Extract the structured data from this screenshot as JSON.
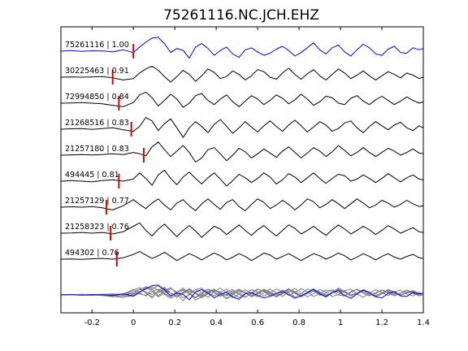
{
  "chart_data": {
    "type": "line",
    "title": "75261116.NC.JCH.EHZ",
    "xlabel": "",
    "ylabel": "",
    "xlim": [
      -0.35,
      1.4
    ],
    "xticks": [
      -0.2,
      0,
      0.2,
      0.4,
      0.6,
      0.8,
      1,
      1.2,
      1.4
    ],
    "xtick_labels": [
      "-0.2",
      "0",
      "0.2",
      "0.4",
      "0.6",
      "0.8",
      "1",
      "1.2",
      "1.4"
    ],
    "grid": false,
    "legend": "none",
    "colors": {
      "reference": "#0000ff",
      "neighbor": "#000000",
      "overlay_neighbor": "#808080",
      "pick": "#e00000"
    },
    "series": [
      {
        "label": "75261116 | 1.00",
        "pick_time": 0.0,
        "reference": true,
        "x": [
          -0.35,
          -0.3,
          -0.25,
          -0.2,
          -0.15,
          -0.1,
          -0.05,
          0.0,
          0.03,
          0.06,
          0.09,
          0.12,
          0.15,
          0.18,
          0.21,
          0.24,
          0.27,
          0.3,
          0.33,
          0.36,
          0.39,
          0.42,
          0.45,
          0.48,
          0.51,
          0.54,
          0.57,
          0.6,
          0.63,
          0.66,
          0.69,
          0.72,
          0.75,
          0.78,
          0.81,
          0.84,
          0.87,
          0.9,
          0.93,
          0.96,
          0.99,
          1.02,
          1.05,
          1.08,
          1.11,
          1.14,
          1.17,
          1.2,
          1.23,
          1.26,
          1.29,
          1.32,
          1.35,
          1.38,
          1.4
        ],
        "y": [
          0.0,
          0.04,
          -0.02,
          0.03,
          0.02,
          -0.05,
          0.1,
          -0.1,
          0.3,
          0.65,
          0.95,
          1.0,
          0.55,
          -0.1,
          0.2,
          0.05,
          -0.5,
          0.3,
          0.55,
          0.2,
          -0.3,
          0.05,
          0.3,
          -0.2,
          -0.45,
          0.1,
          0.25,
          -0.05,
          -0.3,
          -0.15,
          0.15,
          0.35,
          0.05,
          -0.35,
          -0.1,
          0.25,
          0.6,
          0.1,
          -0.2,
          0.25,
          0.45,
          -0.05,
          -0.35,
          0.1,
          0.5,
          0.25,
          -0.2,
          -0.3,
          0.15,
          0.35,
          -0.1,
          -0.15,
          0.25,
          0.1,
          0.2
        ]
      },
      {
        "label": "30225463 | 0.91",
        "pick_time": -0.1,
        "x": [
          -0.35,
          -0.3,
          -0.25,
          -0.2,
          -0.15,
          -0.1,
          -0.05,
          0.0,
          0.03,
          0.06,
          0.09,
          0.12,
          0.15,
          0.18,
          0.21,
          0.24,
          0.27,
          0.3,
          0.33,
          0.36,
          0.39,
          0.42,
          0.45,
          0.48,
          0.51,
          0.54,
          0.57,
          0.6,
          0.63,
          0.66,
          0.69,
          0.72,
          0.75,
          0.78,
          0.81,
          0.84,
          0.87,
          0.9,
          0.93,
          0.96,
          0.99,
          1.02,
          1.05,
          1.08,
          1.11,
          1.14,
          1.17,
          1.2,
          1.23,
          1.26,
          1.29,
          1.32,
          1.35,
          1.38,
          1.4
        ],
        "y": [
          0.0,
          0.02,
          0.0,
          0.02,
          0.05,
          -0.05,
          -0.2,
          -0.1,
          0.3,
          0.6,
          0.8,
          0.5,
          0.05,
          -0.35,
          0.05,
          0.5,
          0.2,
          -0.3,
          0.1,
          0.6,
          0.35,
          -0.1,
          0.05,
          0.45,
          0.2,
          -0.2,
          0.1,
          0.55,
          0.4,
          0.0,
          -0.15,
          0.3,
          0.65,
          0.2,
          -0.15,
          0.25,
          0.55,
          0.1,
          -0.2,
          0.2,
          0.6,
          0.3,
          -0.1,
          0.15,
          0.45,
          0.1,
          -0.2,
          0.1,
          0.4,
          0.2,
          -0.05,
          0.3,
          0.15,
          -0.1,
          0.0
        ]
      },
      {
        "label": "72994850 | 0.84",
        "pick_time": -0.07,
        "x": [
          -0.35,
          -0.3,
          -0.25,
          -0.2,
          -0.15,
          -0.1,
          -0.05,
          0.0,
          0.03,
          0.06,
          0.09,
          0.12,
          0.15,
          0.18,
          0.21,
          0.24,
          0.27,
          0.3,
          0.33,
          0.36,
          0.39,
          0.42,
          0.45,
          0.48,
          0.51,
          0.54,
          0.57,
          0.6,
          0.63,
          0.66,
          0.69,
          0.72,
          0.75,
          0.78,
          0.81,
          0.84,
          0.87,
          0.9,
          0.93,
          0.96,
          0.99,
          1.02,
          1.05,
          1.08,
          1.11,
          1.14,
          1.17,
          1.2,
          1.23,
          1.26,
          1.29,
          1.32,
          1.35,
          1.38,
          1.4
        ],
        "y": [
          0.0,
          0.02,
          0.05,
          0.0,
          -0.05,
          -0.15,
          -0.25,
          0.05,
          0.6,
          0.8,
          0.4,
          -0.2,
          0.2,
          0.65,
          0.3,
          -0.3,
          0.0,
          0.55,
          0.7,
          0.2,
          -0.1,
          0.3,
          0.6,
          0.1,
          -0.25,
          0.15,
          0.55,
          0.3,
          -0.1,
          0.2,
          0.6,
          0.35,
          -0.05,
          0.25,
          0.65,
          0.3,
          -0.15,
          0.1,
          0.5,
          0.4,
          0.0,
          -0.1,
          0.35,
          0.55,
          0.15,
          -0.1,
          0.25,
          0.5,
          0.2,
          -0.1,
          0.15,
          0.45,
          0.2,
          0.0,
          0.1
        ]
      },
      {
        "label": "21268516 | 0.83",
        "pick_time": -0.01,
        "x": [
          -0.35,
          -0.3,
          -0.25,
          -0.2,
          -0.15,
          -0.1,
          -0.05,
          0.0,
          0.03,
          0.06,
          0.09,
          0.12,
          0.15,
          0.18,
          0.21,
          0.24,
          0.27,
          0.3,
          0.33,
          0.36,
          0.39,
          0.42,
          0.45,
          0.48,
          0.51,
          0.54,
          0.57,
          0.6,
          0.63,
          0.66,
          0.69,
          0.72,
          0.75,
          0.78,
          0.81,
          0.84,
          0.87,
          0.9,
          0.93,
          0.96,
          0.99,
          1.02,
          1.05,
          1.08,
          1.11,
          1.14,
          1.17,
          1.2,
          1.23,
          1.26,
          1.29,
          1.32,
          1.35,
          1.38,
          1.4
        ],
        "y": [
          0.0,
          0.03,
          0.05,
          -0.02,
          0.05,
          0.1,
          -0.05,
          -0.15,
          0.2,
          0.85,
          0.6,
          -0.1,
          0.4,
          0.75,
          0.1,
          -0.6,
          0.1,
          0.55,
          0.2,
          -0.25,
          0.35,
          0.7,
          0.2,
          -0.3,
          0.1,
          0.55,
          0.15,
          -0.2,
          0.25,
          0.6,
          0.2,
          -0.15,
          0.3,
          0.65,
          0.25,
          -0.2,
          0.15,
          0.55,
          0.3,
          -0.15,
          0.05,
          0.45,
          0.6,
          0.1,
          -0.25,
          0.2,
          0.55,
          0.25,
          -0.05,
          0.3,
          0.5,
          0.1,
          -0.1,
          0.25,
          0.1
        ]
      },
      {
        "label": "21257180 | 0.83",
        "pick_time": 0.05,
        "x": [
          -0.35,
          -0.3,
          -0.25,
          -0.2,
          -0.15,
          -0.1,
          -0.05,
          0.0,
          0.03,
          0.06,
          0.09,
          0.12,
          0.15,
          0.18,
          0.21,
          0.24,
          0.27,
          0.3,
          0.33,
          0.36,
          0.39,
          0.42,
          0.45,
          0.48,
          0.51,
          0.54,
          0.57,
          0.6,
          0.63,
          0.66,
          0.69,
          0.72,
          0.75,
          0.78,
          0.81,
          0.84,
          0.87,
          0.9,
          0.93,
          0.96,
          0.99,
          1.02,
          1.05,
          1.08,
          1.11,
          1.14,
          1.17,
          1.2,
          1.23,
          1.26,
          1.29,
          1.32,
          1.35,
          1.38,
          1.4
        ],
        "y": [
          0.0,
          0.02,
          0.05,
          0.02,
          0.05,
          0.1,
          0.05,
          0.2,
          0.1,
          -0.05,
          0.6,
          0.95,
          0.4,
          -0.1,
          0.3,
          0.7,
          0.2,
          -0.5,
          -0.2,
          0.4,
          0.55,
          0.1,
          -0.4,
          0.0,
          0.5,
          0.25,
          -0.2,
          0.1,
          0.45,
          0.15,
          -0.15,
          0.3,
          0.6,
          0.2,
          -0.2,
          0.15,
          0.55,
          0.3,
          -0.1,
          0.25,
          0.7,
          0.35,
          -0.05,
          0.2,
          0.55,
          0.2,
          -0.1,
          0.2,
          0.5,
          0.3,
          0.0,
          0.2,
          0.45,
          0.15,
          0.1
        ]
      },
      {
        "label": "494445 | 0.81",
        "pick_time": -0.07,
        "x": [
          -0.35,
          -0.3,
          -0.25,
          -0.2,
          -0.15,
          -0.1,
          -0.05,
          0.0,
          0.03,
          0.06,
          0.09,
          0.12,
          0.15,
          0.18,
          0.21,
          0.24,
          0.27,
          0.3,
          0.33,
          0.36,
          0.39,
          0.42,
          0.45,
          0.48,
          0.51,
          0.54,
          0.57,
          0.6,
          0.63,
          0.66,
          0.69,
          0.72,
          0.75,
          0.78,
          0.81,
          0.84,
          0.87,
          0.9,
          0.93,
          0.96,
          0.99,
          1.02,
          1.05,
          1.08,
          1.11,
          1.14,
          1.17,
          1.2,
          1.23,
          1.26,
          1.29,
          1.32,
          1.35,
          1.38,
          1.4
        ],
        "y": [
          0.0,
          0.05,
          0.0,
          -0.05,
          0.05,
          0.1,
          0.0,
          0.15,
          0.6,
          0.2,
          -0.3,
          0.45,
          0.8,
          0.2,
          -0.25,
          0.3,
          0.65,
          0.2,
          -0.2,
          0.25,
          0.6,
          0.15,
          -0.35,
          0.05,
          0.5,
          0.25,
          -0.1,
          0.2,
          0.6,
          0.3,
          -0.2,
          0.1,
          0.55,
          0.3,
          -0.1,
          0.25,
          0.6,
          0.2,
          -0.15,
          0.2,
          0.5,
          0.4,
          0.0,
          0.15,
          0.45,
          0.2,
          -0.1,
          0.2,
          0.55,
          0.25,
          -0.05,
          0.25,
          0.45,
          0.15,
          0.1
        ]
      },
      {
        "label": "21257129 | 0.77",
        "pick_time": -0.13,
        "x": [
          -0.35,
          -0.3,
          -0.25,
          -0.2,
          -0.15,
          -0.1,
          -0.05,
          0.0,
          0.03,
          0.06,
          0.09,
          0.12,
          0.15,
          0.18,
          0.21,
          0.24,
          0.27,
          0.3,
          0.33,
          0.36,
          0.39,
          0.42,
          0.45,
          0.48,
          0.51,
          0.54,
          0.57,
          0.6,
          0.63,
          0.66,
          0.69,
          0.72,
          0.75,
          0.78,
          0.81,
          0.84,
          0.87,
          0.9,
          0.93,
          0.96,
          0.99,
          1.02,
          1.05,
          1.08,
          1.11,
          1.14,
          1.17,
          1.2,
          1.23,
          1.26,
          1.29,
          1.32,
          1.35,
          1.38,
          1.4
        ],
        "y": [
          0.0,
          0.03,
          0.0,
          0.05,
          -0.05,
          -0.2,
          0.1,
          0.55,
          0.2,
          -0.1,
          0.3,
          0.6,
          0.15,
          -0.2,
          0.3,
          0.55,
          0.1,
          -0.25,
          0.25,
          0.6,
          0.2,
          -0.15,
          0.35,
          0.55,
          0.05,
          -0.25,
          0.2,
          0.6,
          0.35,
          -0.1,
          0.15,
          0.5,
          0.2,
          -0.2,
          0.15,
          0.6,
          0.4,
          -0.05,
          0.2,
          0.55,
          0.25,
          -0.1,
          0.25,
          0.6,
          0.3,
          -0.05,
          0.15,
          0.5,
          0.3,
          0.0,
          0.2,
          0.5,
          0.25,
          0.05,
          0.1
        ]
      },
      {
        "label": "21258323 | 0.76",
        "pick_time": -0.11,
        "x": [
          -0.35,
          -0.3,
          -0.25,
          -0.2,
          -0.15,
          -0.1,
          -0.05,
          0.0,
          0.03,
          0.06,
          0.09,
          0.12,
          0.15,
          0.18,
          0.21,
          0.24,
          0.27,
          0.3,
          0.33,
          0.36,
          0.39,
          0.42,
          0.45,
          0.48,
          0.51,
          0.54,
          0.57,
          0.6,
          0.63,
          0.66,
          0.69,
          0.72,
          0.75,
          0.78,
          0.81,
          0.84,
          0.87,
          0.9,
          0.93,
          0.96,
          0.99,
          1.02,
          1.05,
          1.08,
          1.11,
          1.14,
          1.17,
          1.2,
          1.23,
          1.26,
          1.29,
          1.32,
          1.35,
          1.38,
          1.4
        ],
        "y": [
          0.0,
          0.02,
          0.05,
          0.0,
          0.05,
          -0.05,
          0.1,
          0.5,
          0.75,
          0.2,
          -0.2,
          0.3,
          0.65,
          0.2,
          -0.25,
          0.2,
          0.55,
          0.15,
          -0.3,
          0.1,
          0.5,
          0.3,
          -0.1,
          0.25,
          0.6,
          0.2,
          -0.15,
          0.25,
          0.55,
          0.15,
          -0.2,
          0.2,
          0.6,
          0.35,
          -0.05,
          0.2,
          0.5,
          0.15,
          -0.15,
          0.25,
          0.6,
          0.3,
          -0.05,
          0.2,
          0.5,
          0.25,
          -0.1,
          0.2,
          0.55,
          0.3,
          0.0,
          0.2,
          0.4,
          0.1,
          0.05
        ]
      },
      {
        "label": "494302 | 0.76",
        "pick_time": -0.08,
        "x": [
          -0.35,
          -0.3,
          -0.25,
          -0.2,
          -0.15,
          -0.1,
          -0.05,
          0.0,
          0.03,
          0.06,
          0.09,
          0.12,
          0.15,
          0.18,
          0.21,
          0.24,
          0.27,
          0.3,
          0.33,
          0.36,
          0.39,
          0.42,
          0.45,
          0.48,
          0.51,
          0.54,
          0.57,
          0.6,
          0.63,
          0.66,
          0.69,
          0.72,
          0.75,
          0.78,
          0.81,
          0.84,
          0.87,
          0.9,
          0.93,
          0.96,
          0.99,
          1.02,
          1.05,
          1.08,
          1.11,
          1.14,
          1.17,
          1.2,
          1.23,
          1.26,
          1.29,
          1.32,
          1.35,
          1.38,
          1.4
        ],
        "y": [
          0.0,
          0.02,
          -0.02,
          0.03,
          0.05,
          0.0,
          0.1,
          0.35,
          0.55,
          0.3,
          0.05,
          0.25,
          0.5,
          0.2,
          -0.1,
          0.15,
          0.4,
          0.2,
          -0.05,
          0.2,
          0.45,
          0.25,
          -0.05,
          0.15,
          0.4,
          0.2,
          -0.1,
          0.15,
          0.45,
          0.3,
          0.0,
          0.2,
          0.4,
          0.15,
          -0.1,
          0.15,
          0.4,
          0.25,
          0.0,
          0.2,
          0.45,
          0.25,
          -0.05,
          0.15,
          0.4,
          0.2,
          -0.05,
          0.2,
          0.4,
          0.15,
          0.0,
          0.2,
          0.35,
          0.1,
          0.05
        ]
      }
    ]
  }
}
